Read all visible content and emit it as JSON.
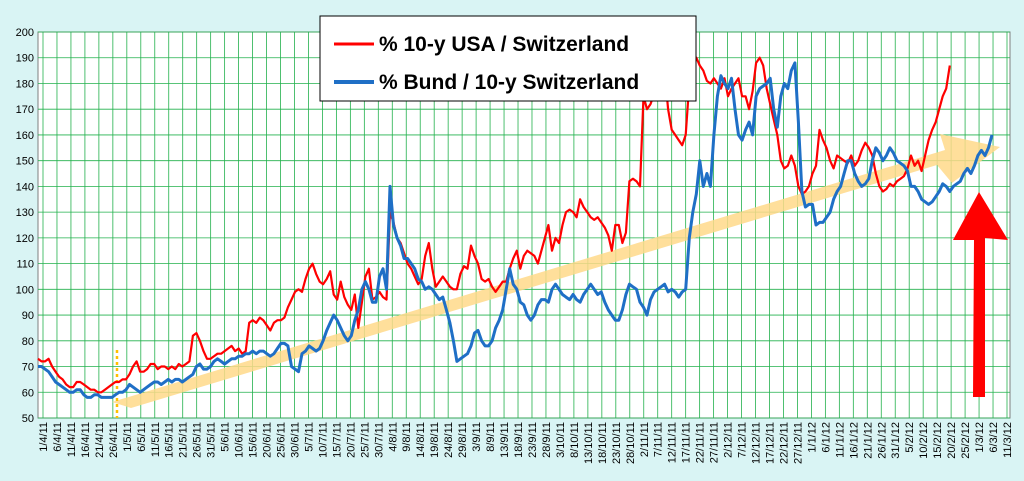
{
  "chart_data": {
    "type": "line",
    "title": "",
    "xlabel": "",
    "ylabel": "",
    "ylim": [
      50,
      200
    ],
    "y_ticks": [
      50,
      60,
      70,
      80,
      90,
      100,
      110,
      120,
      130,
      140,
      150,
      160,
      170,
      180,
      190,
      200
    ],
    "x_tick_labels": [
      "1/4/11",
      "6/4/11",
      "11/4/11",
      "16/4/11",
      "21/4/11",
      "26/4/11",
      "1/5/11",
      "6/5/11",
      "11/5/11",
      "16/5/11",
      "21/5/11",
      "26/5/11",
      "31/5/11",
      "5/6/11",
      "10/6/11",
      "15/6/11",
      "20/6/11",
      "25/6/11",
      "30/6/11",
      "5/7/11",
      "10/7/11",
      "15/7/11",
      "20/7/11",
      "25/7/11",
      "30/7/11",
      "4/8/11",
      "9/8/11",
      "14/8/11",
      "19/8/11",
      "24/8/11",
      "29/8/11",
      "3/9/11",
      "8/9/11",
      "13/9/11",
      "18/9/11",
      "23/9/11",
      "28/9/11",
      "3/10/11",
      "8/10/11",
      "13/10/11",
      "18/10/11",
      "23/10/11",
      "28/10/11",
      "2/11/11",
      "7/11/11",
      "12/11/11",
      "17/11/11",
      "22/11/11",
      "27/11/11",
      "2/12/11",
      "7/12/11",
      "12/12/11",
      "17/12/11",
      "22/12/11",
      "27/12/11",
      "1/1/12",
      "6/1/12",
      "11/1/12",
      "16/1/12",
      "21/1/12",
      "26/1/12",
      "31/1/12",
      "5/2/12",
      "10/2/12",
      "15/2/12",
      "20/2/12",
      "25/2/12",
      "1/3/12",
      "6/3/12",
      "11/3/12"
    ],
    "grid": true,
    "legend_position": "top-center",
    "series": [
      {
        "name": "% 10-y USA / Switzerland",
        "color": "#ff0000",
        "x_start_index": 0,
        "values": [
          73,
          72,
          72,
          73,
          70,
          68,
          66,
          65,
          63,
          62,
          62,
          64,
          64,
          63,
          62,
          61,
          61,
          60,
          60,
          61,
          62,
          63,
          64,
          64,
          65,
          65,
          67,
          70,
          72,
          68,
          68,
          69,
          71,
          71,
          69,
          70,
          70,
          69,
          70,
          69,
          71,
          70,
          71,
          72,
          82,
          83,
          80,
          76,
          73,
          73,
          74,
          75,
          75,
          76,
          77,
          78,
          76,
          77,
          75,
          76,
          87,
          88,
          87,
          89,
          88,
          86,
          84,
          87,
          88,
          88,
          89,
          93,
          96,
          99,
          100,
          99,
          104,
          108,
          110,
          106,
          103,
          102,
          104,
          107,
          98,
          96,
          103,
          97,
          94,
          92,
          98,
          85,
          95,
          105,
          108,
          96,
          97,
          99,
          97,
          96,
          130,
          126,
          120,
          118,
          114,
          110,
          108,
          105,
          102,
          104,
          113,
          118,
          108,
          101,
          103,
          105,
          103,
          101,
          100,
          100,
          106,
          109,
          108,
          117,
          113,
          110,
          104,
          103,
          104,
          101,
          99,
          101,
          103,
          103,
          108,
          112,
          115,
          108,
          113,
          115,
          114,
          113,
          110,
          115,
          120,
          125,
          115,
          120,
          118,
          125,
          130,
          131,
          130,
          128,
          135,
          132,
          130,
          128,
          127,
          128,
          126,
          124,
          121,
          115,
          125,
          125,
          118,
          122,
          142,
          143,
          142,
          140,
          175,
          170,
          172,
          176,
          180,
          183,
          185,
          170,
          162,
          160,
          158,
          156,
          160,
          180,
          191,
          190,
          187,
          185,
          181,
          180,
          182,
          180,
          178,
          182,
          175,
          178,
          180,
          182,
          175,
          175,
          170,
          177,
          188,
          190,
          187,
          178,
          172,
          166,
          160,
          150,
          147,
          148,
          152,
          148,
          140,
          137,
          138,
          140,
          145,
          148,
          162,
          158,
          155,
          150,
          147,
          152,
          151,
          150,
          149,
          152,
          148,
          150,
          154,
          157,
          155,
          152,
          145,
          140,
          138,
          139,
          141,
          140,
          142,
          143,
          144,
          147,
          152,
          148,
          150,
          146,
          152,
          158,
          162,
          165,
          170,
          175,
          178,
          187
        ]
      },
      {
        "name": "% Bund / 10-y Switzerland",
        "color": "#1f6fc6",
        "x_start_index": 0,
        "values": [
          70,
          70,
          69,
          68,
          66,
          64,
          63,
          62,
          61,
          60,
          60,
          61,
          61,
          59,
          58,
          58,
          59,
          59,
          58,
          58,
          58,
          58,
          59,
          60,
          60,
          61,
          63,
          62,
          61,
          60,
          61,
          62,
          63,
          64,
          64,
          63,
          64,
          65,
          64,
          65,
          65,
          64,
          65,
          66,
          67,
          70,
          71,
          69,
          69,
          70,
          72,
          73,
          72,
          71,
          72,
          73,
          73,
          74,
          74,
          75,
          75,
          76,
          75,
          76,
          76,
          75,
          74,
          75,
          77,
          79,
          79,
          78,
          70,
          69,
          68,
          75,
          76,
          78,
          77,
          76,
          77,
          80,
          84,
          87,
          90,
          88,
          85,
          82,
          80,
          82,
          88,
          92,
          100,
          103,
          100,
          95,
          95,
          105,
          108,
          100,
          140,
          125,
          120,
          117,
          112,
          112,
          110,
          108,
          104,
          103,
          100,
          101,
          100,
          98,
          96,
          97,
          92,
          87,
          80,
          72,
          73,
          74,
          75,
          78,
          83,
          84,
          80,
          78,
          78,
          80,
          85,
          88,
          92,
          100,
          108,
          102,
          100,
          95,
          94,
          90,
          88,
          90,
          94,
          96,
          96,
          95,
          100,
          102,
          100,
          98,
          97,
          96,
          98,
          96,
          95,
          98,
          100,
          102,
          100,
          98,
          99,
          95,
          92,
          90,
          88,
          88,
          92,
          98,
          102,
          101,
          100,
          95,
          93,
          90,
          96,
          99,
          100,
          101,
          102,
          99,
          100,
          99,
          97,
          99,
          100,
          120,
          130,
          137,
          150,
          140,
          145,
          140,
          160,
          175,
          183,
          180,
          178,
          182,
          170,
          160,
          158,
          162,
          165,
          160,
          175,
          178,
          179,
          180,
          182,
          170,
          163,
          175,
          180,
          178,
          185,
          188,
          165,
          138,
          132,
          133,
          133,
          125,
          126,
          126,
          128,
          130,
          135,
          138,
          140,
          145,
          150,
          150,
          145,
          142,
          140,
          141,
          143,
          150,
          155,
          153,
          150,
          152,
          155,
          153,
          150,
          149,
          148,
          146,
          140,
          140,
          138,
          135,
          134,
          133,
          134,
          136,
          138,
          141,
          140,
          138,
          140,
          141,
          142,
          145,
          147,
          145,
          148,
          152,
          154,
          152,
          155,
          160
        ]
      }
    ]
  }
}
